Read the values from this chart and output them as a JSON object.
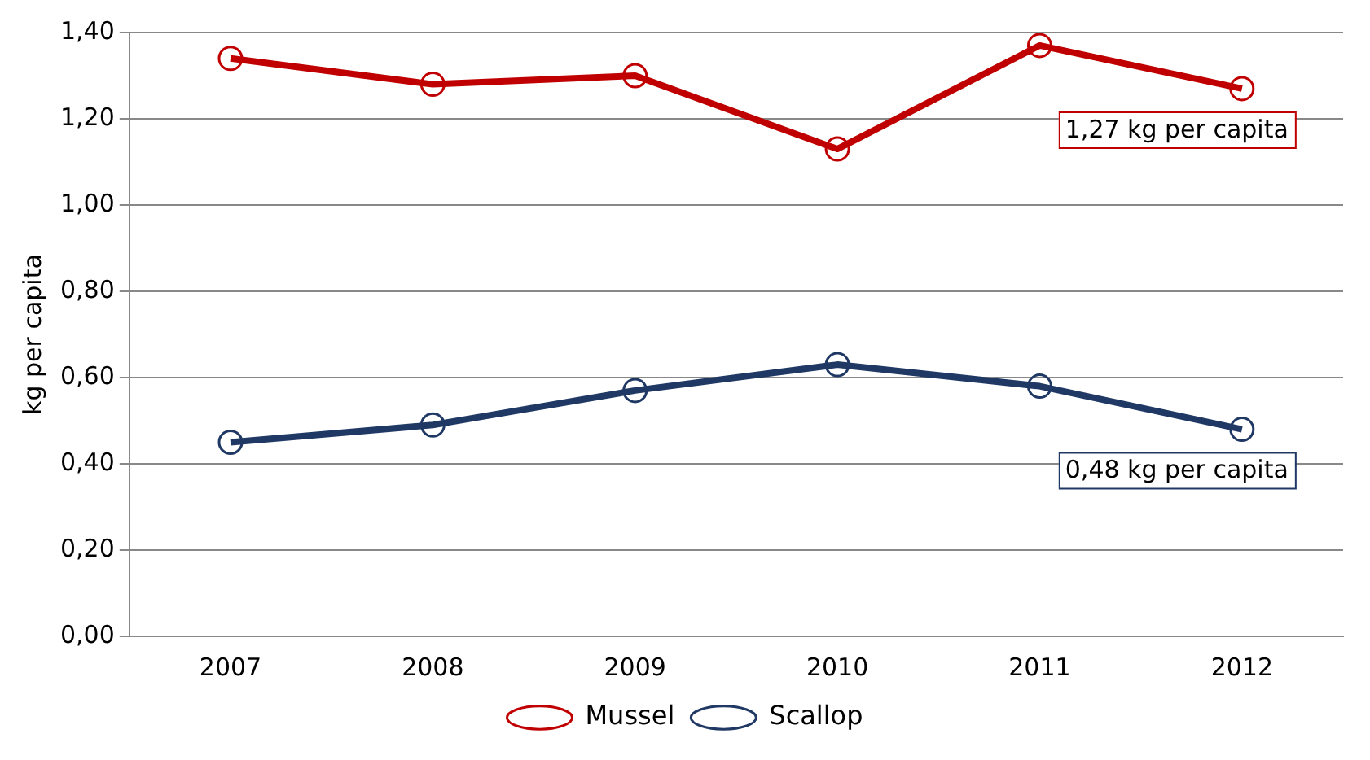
{
  "chart_data": {
    "type": "line",
    "ylabel": "kg per capita",
    "categories": [
      "2007",
      "2008",
      "2009",
      "2010",
      "2011",
      "2012"
    ],
    "series": [
      {
        "name": "Mussel",
        "color": "#c00000",
        "values": [
          1.34,
          1.28,
          1.3,
          1.13,
          1.37,
          1.27
        ]
      },
      {
        "name": "Scallop",
        "color": "#1f3864",
        "values": [
          0.45,
          0.49,
          0.57,
          0.63,
          0.58,
          0.48
        ]
      }
    ],
    "ylim": [
      0,
      1.4
    ],
    "yticks": [
      {
        "value": 0,
        "label": "0,00"
      },
      {
        "value": 0.2,
        "label": "0,20"
      },
      {
        "value": 0.4,
        "label": "0,40"
      },
      {
        "value": 0.6,
        "label": "0,60"
      },
      {
        "value": 0.8,
        "label": "0,80"
      },
      {
        "value": 1,
        "label": "1,00"
      },
      {
        "value": 1.2,
        "label": "1,20"
      },
      {
        "value": 1.4,
        "label": "1,40"
      }
    ],
    "annotations": [
      {
        "text": "1,27 kg per capita",
        "x": "2012",
        "y": 1.27
      },
      {
        "text": "0,48 kg per capita",
        "x": "2012",
        "y": 0.48
      }
    ],
    "grid": "y",
    "legend": "bottom",
    "marker": "circle",
    "line_style": "solid"
  }
}
